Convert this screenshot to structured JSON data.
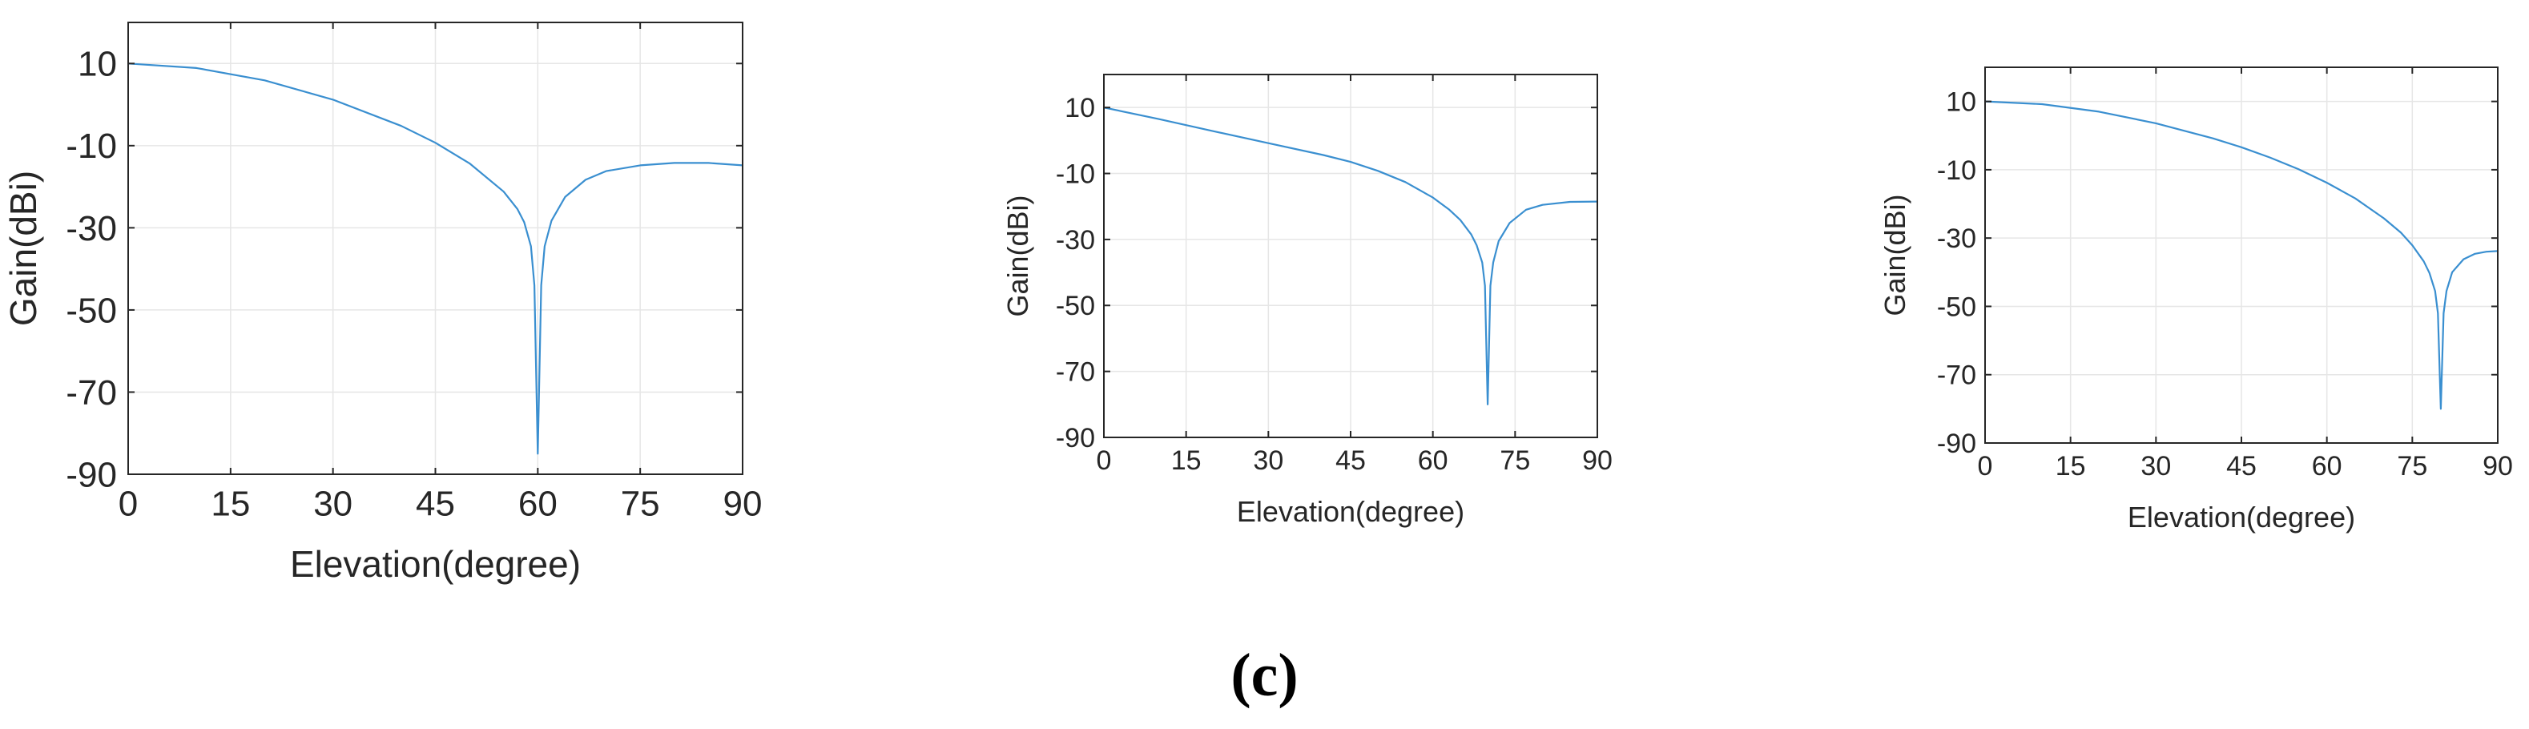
{
  "caption": "(c)",
  "colors": {
    "line": "#3a8fd0",
    "grid": "#e6e6e6",
    "axis": "#262626"
  },
  "chart_data": [
    {
      "type": "line",
      "title": "",
      "xlabel": "Elevation(degree)",
      "ylabel": "Gain(dBi)",
      "xlim": [
        0,
        90
      ],
      "ylim": [
        -90,
        20
      ],
      "xticks": [
        0,
        15,
        30,
        45,
        60,
        75,
        90
      ],
      "yticks": [
        10,
        -10,
        -30,
        -50,
        -70,
        -90
      ],
      "grid": true,
      "series": [
        {
          "x": [
            0,
            10,
            20,
            30,
            40,
            45,
            50,
            55,
            57,
            58,
            59,
            59.5,
            60,
            60.5,
            61,
            62,
            64,
            67,
            70,
            75,
            80,
            85,
            90
          ],
          "y": [
            10,
            8.9,
            5.9,
            1.2,
            -5.2,
            -9.3,
            -14.3,
            -21.2,
            -25.4,
            -28.6,
            -34.5,
            -44,
            -85,
            -44,
            -34.5,
            -28.3,
            -22.5,
            -18.3,
            -16.2,
            -14.8,
            -14.2,
            -14.2,
            -14.8
          ]
        }
      ]
    },
    {
      "type": "line",
      "title": "",
      "xlabel": "Elevation(degree)",
      "ylabel": "Gain(dBi)",
      "xlim": [
        0,
        90
      ],
      "ylim": [
        -90,
        20
      ],
      "xticks": [
        0,
        15,
        30,
        45,
        60,
        75,
        90
      ],
      "yticks": [
        10,
        -10,
        -30,
        -50,
        -70,
        -90
      ],
      "grid": true,
      "series": [
        {
          "x": [
            0,
            10,
            20,
            30,
            40,
            45,
            50,
            55,
            60,
            63,
            65,
            67,
            68,
            69,
            69.5,
            70,
            70.5,
            71,
            72,
            74,
            77,
            80,
            85,
            90
          ],
          "y": [
            10,
            6.5,
            2.8,
            -0.8,
            -4.4,
            -6.5,
            -9.2,
            -12.6,
            -17.3,
            -21,
            -24.1,
            -28.5,
            -31.8,
            -37,
            -44,
            -80,
            -44,
            -37,
            -30.5,
            -25,
            -21,
            -19.5,
            -18.6,
            -18.5
          ]
        }
      ]
    },
    {
      "type": "line",
      "title": "",
      "xlabel": "Elevation(degree)",
      "ylabel": "Gain(dBi)",
      "xlim": [
        0,
        90
      ],
      "ylim": [
        -90,
        20
      ],
      "xticks": [
        0,
        15,
        30,
        45,
        60,
        75,
        90
      ],
      "yticks": [
        10,
        -10,
        -30,
        -50,
        -70,
        -90
      ],
      "grid": true,
      "series": [
        {
          "x": [
            0,
            10,
            20,
            30,
            40,
            45,
            50,
            55,
            60,
            65,
            70,
            73,
            75,
            77,
            78,
            79,
            79.5,
            80,
            80.5,
            81,
            82,
            84,
            86,
            88,
            90
          ],
          "y": [
            10,
            9.2,
            7,
            3.6,
            -0.8,
            -3.4,
            -6.4,
            -9.8,
            -13.8,
            -18.4,
            -24.2,
            -28.4,
            -32.1,
            -36.8,
            -40.2,
            -45.5,
            -52,
            -80,
            -52,
            -45.5,
            -40,
            -36.2,
            -34.6,
            -34,
            -33.8
          ]
        }
      ]
    }
  ]
}
